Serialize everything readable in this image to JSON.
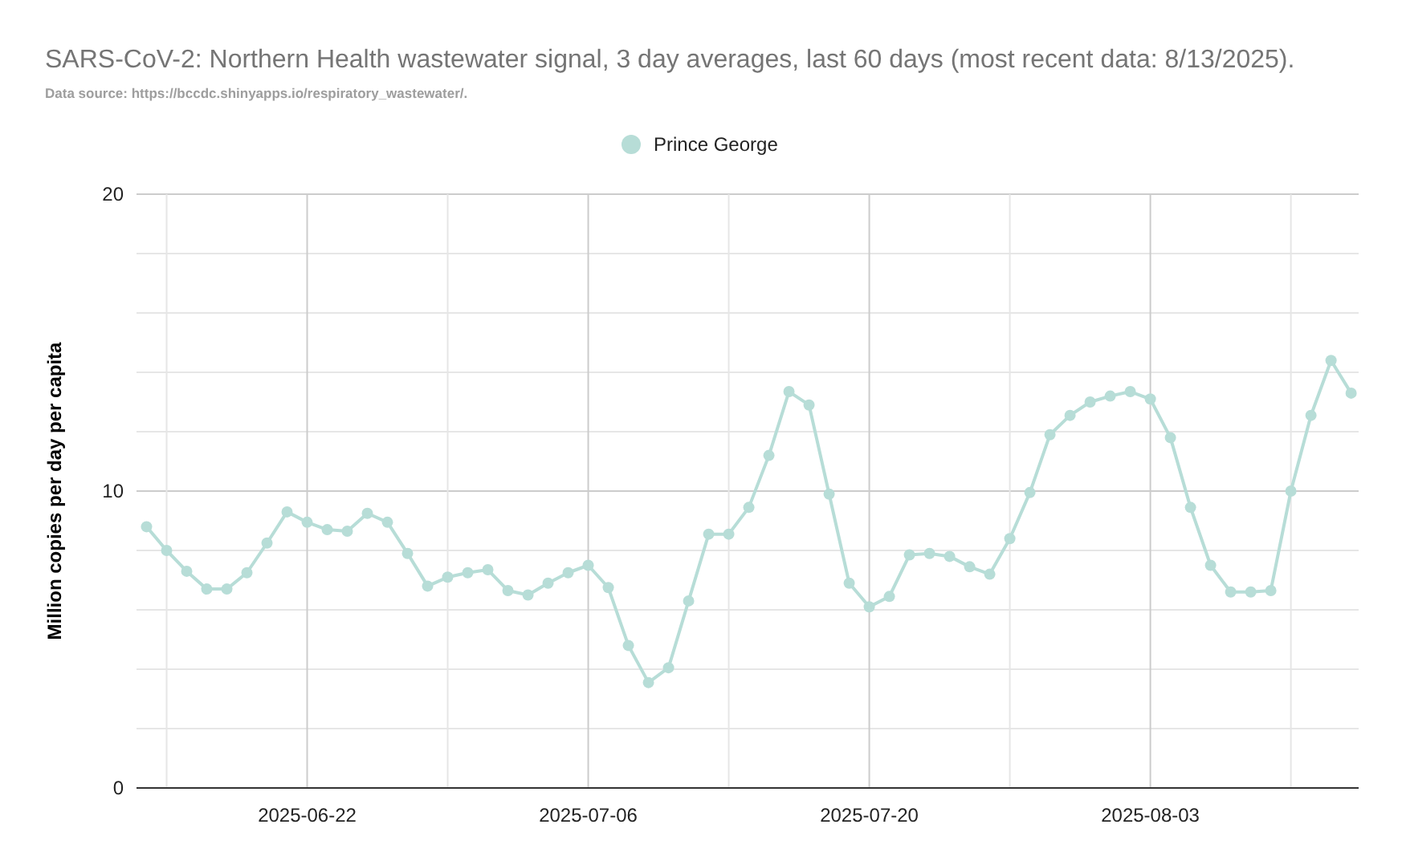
{
  "chart_data": {
    "type": "line",
    "title": "SARS-CoV-2: Northern Health wastewater signal, 3 day averages, last 60 days (most recent data: 8/13/2025).",
    "subtitle": "Data source: https://bccdc.shinyapps.io/respiratory_wastewater/.",
    "ylabel": "Million copies per day per capita",
    "x": [
      "2025-06-14",
      "2025-06-15",
      "2025-06-16",
      "2025-06-17",
      "2025-06-18",
      "2025-06-19",
      "2025-06-20",
      "2025-06-21",
      "2025-06-22",
      "2025-06-23",
      "2025-06-24",
      "2025-06-25",
      "2025-06-26",
      "2025-06-27",
      "2025-06-28",
      "2025-06-29",
      "2025-06-30",
      "2025-07-01",
      "2025-07-02",
      "2025-07-03",
      "2025-07-04",
      "2025-07-05",
      "2025-07-06",
      "2025-07-07",
      "2025-07-08",
      "2025-07-09",
      "2025-07-10",
      "2025-07-11",
      "2025-07-12",
      "2025-07-13",
      "2025-07-14",
      "2025-07-15",
      "2025-07-16",
      "2025-07-17",
      "2025-07-18",
      "2025-07-19",
      "2025-07-20",
      "2025-07-21",
      "2025-07-22",
      "2025-07-23",
      "2025-07-24",
      "2025-07-25",
      "2025-07-26",
      "2025-07-27",
      "2025-07-28",
      "2025-07-29",
      "2025-07-30",
      "2025-07-31",
      "2025-08-01",
      "2025-08-02",
      "2025-08-03",
      "2025-08-04",
      "2025-08-05",
      "2025-08-06",
      "2025-08-07",
      "2025-08-08",
      "2025-08-09",
      "2025-08-10",
      "2025-08-11",
      "2025-08-12",
      "2025-08-13"
    ],
    "series": [
      {
        "name": "Prince George",
        "color": "#b7ddd7",
        "values": [
          8.8,
          8.0,
          7.3,
          6.7,
          6.7,
          7.25,
          8.25,
          9.3,
          8.95,
          8.7,
          8.65,
          9.25,
          8.95,
          7.9,
          6.8,
          7.1,
          7.25,
          7.35,
          6.65,
          6.5,
          6.9,
          7.25,
          7.5,
          6.75,
          4.8,
          3.55,
          4.05,
          6.3,
          8.55,
          8.55,
          9.45,
          11.2,
          13.35,
          12.9,
          9.9,
          6.9,
          6.1,
          6.45,
          7.85,
          7.9,
          7.8,
          7.45,
          7.2,
          8.4,
          9.95,
          11.9,
          12.55,
          13.0,
          13.2,
          13.35,
          13.1,
          11.8,
          9.45,
          7.5,
          6.6,
          6.6,
          6.65,
          10.0,
          12.55,
          14.4,
          13.3
        ]
      }
    ],
    "xlim": [
      "2025-06-13T12:00",
      "2025-08-13T09:00"
    ],
    "xticks": [
      {
        "value": "2025-06-15",
        "label": null
      },
      {
        "value": "2025-06-22",
        "label": "2025-06-22"
      },
      {
        "value": "2025-06-29",
        "label": null
      },
      {
        "value": "2025-07-06",
        "label": "2025-07-06"
      },
      {
        "value": "2025-07-13",
        "label": null
      },
      {
        "value": "2025-07-20",
        "label": "2025-07-20"
      },
      {
        "value": "2025-07-27",
        "label": null
      },
      {
        "value": "2025-08-03",
        "label": "2025-08-03"
      },
      {
        "value": "2025-08-10",
        "label": null
      }
    ],
    "ylim": [
      0,
      20
    ],
    "yticks": [
      0,
      {
        "value": 2,
        "label": null
      },
      {
        "value": 4,
        "label": null
      },
      {
        "value": 6,
        "label": null
      },
      {
        "value": 8,
        "label": null
      },
      10,
      {
        "value": 12,
        "label": null
      },
      {
        "value": 14,
        "label": null
      },
      {
        "value": 16,
        "label": null
      },
      {
        "value": 18,
        "label": null
      },
      20
    ],
    "grid": true,
    "legend": "top",
    "marker": "circle",
    "line_style": "solid"
  }
}
